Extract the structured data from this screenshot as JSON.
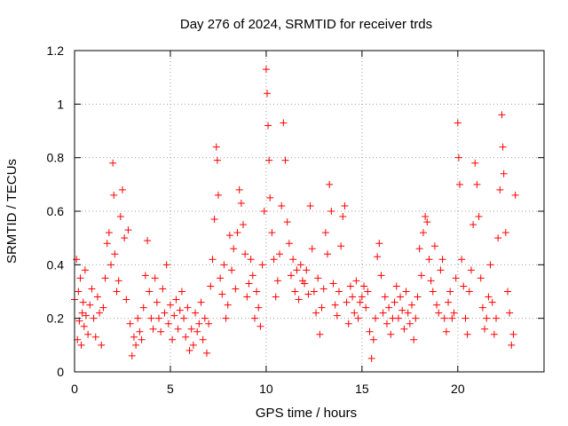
{
  "chart_data": {
    "type": "scatter",
    "title": "Day 276 of 2024, SRMTID for receiver trds",
    "xlabel": "GPS time / hours",
    "ylabel": "SRMTID / TECUs",
    "xlim": [
      0,
      24.5
    ],
    "ylim": [
      0,
      1.2
    ],
    "xticks": [
      0,
      5,
      10,
      15,
      20
    ],
    "xtick_labels": [
      "0",
      "5",
      "10",
      "15",
      "20"
    ],
    "yticks": [
      0,
      0.2,
      0.4,
      0.6,
      0.8,
      1,
      1.2
    ],
    "ytick_labels": [
      "0",
      "0.2",
      "0.4",
      "0.6",
      "0.8",
      "1",
      "1.2"
    ],
    "grid": true,
    "marker": "+",
    "color": "#ff0000",
    "series": [
      {
        "name": "SRMTID",
        "points": [
          [
            0.0,
            0.27
          ],
          [
            0.1,
            0.42
          ],
          [
            0.15,
            0.12
          ],
          [
            0.2,
            0.3
          ],
          [
            0.25,
            0.19
          ],
          [
            0.3,
            0.35
          ],
          [
            0.35,
            0.1
          ],
          [
            0.4,
            0.22
          ],
          [
            0.45,
            0.26
          ],
          [
            0.5,
            0.17
          ],
          [
            0.55,
            0.38
          ],
          [
            0.6,
            0.21
          ],
          [
            0.7,
            0.14
          ],
          [
            0.8,
            0.25
          ],
          [
            0.9,
            0.31
          ],
          [
            1.0,
            0.2
          ],
          [
            1.1,
            0.13
          ],
          [
            1.2,
            0.28
          ],
          [
            1.3,
            0.22
          ],
          [
            1.4,
            0.1
          ],
          [
            1.5,
            0.24
          ],
          [
            1.6,
            0.35
          ],
          [
            1.7,
            0.48
          ],
          [
            1.8,
            0.52
          ],
          [
            1.9,
            0.4
          ],
          [
            2.0,
            0.78
          ],
          [
            2.05,
            0.66
          ],
          [
            2.1,
            0.44
          ],
          [
            2.2,
            0.3
          ],
          [
            2.3,
            0.34
          ],
          [
            2.4,
            0.58
          ],
          [
            2.5,
            0.68
          ],
          [
            2.6,
            0.5
          ],
          [
            2.7,
            0.27
          ],
          [
            2.8,
            0.53
          ],
          [
            2.9,
            0.18
          ],
          [
            3.0,
            0.06
          ],
          [
            3.1,
            0.13
          ],
          [
            3.2,
            0.1
          ],
          [
            3.3,
            0.2
          ],
          [
            3.4,
            0.15
          ],
          [
            3.5,
            0.12
          ],
          [
            3.6,
            0.24
          ],
          [
            3.7,
            0.36
          ],
          [
            3.8,
            0.49
          ],
          [
            3.9,
            0.3
          ],
          [
            4.0,
            0.2
          ],
          [
            4.1,
            0.16
          ],
          [
            4.2,
            0.35
          ],
          [
            4.3,
            0.26
          ],
          [
            4.4,
            0.2
          ],
          [
            4.5,
            0.15
          ],
          [
            4.6,
            0.31
          ],
          [
            4.7,
            0.22
          ],
          [
            4.8,
            0.4
          ],
          [
            4.9,
            0.18
          ],
          [
            5.0,
            0.25
          ],
          [
            5.1,
            0.12
          ],
          [
            5.2,
            0.21
          ],
          [
            5.3,
            0.27
          ],
          [
            5.4,
            0.16
          ],
          [
            5.5,
            0.23
          ],
          [
            5.6,
            0.3
          ],
          [
            5.7,
            0.2
          ],
          [
            5.8,
            0.13
          ],
          [
            5.9,
            0.24
          ],
          [
            6.0,
            0.08
          ],
          [
            6.1,
            0.16
          ],
          [
            6.2,
            0.1
          ],
          [
            6.3,
            0.22
          ],
          [
            6.4,
            0.15
          ],
          [
            6.5,
            0.18
          ],
          [
            6.6,
            0.26
          ],
          [
            6.7,
            0.12
          ],
          [
            6.8,
            0.2
          ],
          [
            6.9,
            0.07
          ],
          [
            7.0,
            0.18
          ],
          [
            7.1,
            0.32
          ],
          [
            7.2,
            0.42
          ],
          [
            7.3,
            0.57
          ],
          [
            7.4,
            0.84
          ],
          [
            7.45,
            0.79
          ],
          [
            7.5,
            0.66
          ],
          [
            7.6,
            0.35
          ],
          [
            7.7,
            0.29
          ],
          [
            7.8,
            0.4
          ],
          [
            7.9,
            0.2
          ],
          [
            8.0,
            0.25
          ],
          [
            8.1,
            0.51
          ],
          [
            8.2,
            0.38
          ],
          [
            8.3,
            0.46
          ],
          [
            8.4,
            0.31
          ],
          [
            8.5,
            0.52
          ],
          [
            8.6,
            0.68
          ],
          [
            8.7,
            0.63
          ],
          [
            8.8,
            0.55
          ],
          [
            8.9,
            0.44
          ],
          [
            9.0,
            0.28
          ],
          [
            9.1,
            0.33
          ],
          [
            9.2,
            0.42
          ],
          [
            9.3,
            0.36
          ],
          [
            9.4,
            0.2
          ],
          [
            9.5,
            0.3
          ],
          [
            9.6,
            0.24
          ],
          [
            9.7,
            0.17
          ],
          [
            9.8,
            0.4
          ],
          [
            9.9,
            0.6
          ],
          [
            10.0,
            1.13
          ],
          [
            10.05,
            1.04
          ],
          [
            10.1,
            0.92
          ],
          [
            10.15,
            0.79
          ],
          [
            10.2,
            0.65
          ],
          [
            10.3,
            0.52
          ],
          [
            10.4,
            0.42
          ],
          [
            10.5,
            0.28
          ],
          [
            10.6,
            0.34
          ],
          [
            10.7,
            0.44
          ],
          [
            10.8,
            0.62
          ],
          [
            10.9,
            0.93
          ],
          [
            11.0,
            0.79
          ],
          [
            11.1,
            0.56
          ],
          [
            11.2,
            0.48
          ],
          [
            11.3,
            0.36
          ],
          [
            11.4,
            0.42
          ],
          [
            11.5,
            0.3
          ],
          [
            11.6,
            0.38
          ],
          [
            11.7,
            0.27
          ],
          [
            11.8,
            0.4
          ],
          [
            11.9,
            0.34
          ],
          [
            12.0,
            0.33
          ],
          [
            12.1,
            0.38
          ],
          [
            12.2,
            0.29
          ],
          [
            12.3,
            0.62
          ],
          [
            12.4,
            0.46
          ],
          [
            12.5,
            0.3
          ],
          [
            12.6,
            0.22
          ],
          [
            12.7,
            0.35
          ],
          [
            12.8,
            0.14
          ],
          [
            12.9,
            0.24
          ],
          [
            13.0,
            0.31
          ],
          [
            13.1,
            0.52
          ],
          [
            13.2,
            0.44
          ],
          [
            13.3,
            0.7
          ],
          [
            13.4,
            0.6
          ],
          [
            13.5,
            0.33
          ],
          [
            13.6,
            0.25
          ],
          [
            13.7,
            0.21
          ],
          [
            13.8,
            0.3
          ],
          [
            13.9,
            0.47
          ],
          [
            14.0,
            0.58
          ],
          [
            14.1,
            0.62
          ],
          [
            14.2,
            0.26
          ],
          [
            14.3,
            0.18
          ],
          [
            14.4,
            0.32
          ],
          [
            14.5,
            0.28
          ],
          [
            14.6,
            0.22
          ],
          [
            14.7,
            0.34
          ],
          [
            14.8,
            0.2
          ],
          [
            14.9,
            0.26
          ],
          [
            15.0,
            0.28
          ],
          [
            15.1,
            0.32
          ],
          [
            15.2,
            0.24
          ],
          [
            15.3,
            0.3
          ],
          [
            15.4,
            0.15
          ],
          [
            15.5,
            0.05
          ],
          [
            15.6,
            0.12
          ],
          [
            15.7,
            0.2
          ],
          [
            15.8,
            0.43
          ],
          [
            15.9,
            0.48
          ],
          [
            16.0,
            0.36
          ],
          [
            16.1,
            0.22
          ],
          [
            16.2,
            0.28
          ],
          [
            16.3,
            0.18
          ],
          [
            16.4,
            0.24
          ],
          [
            16.5,
            0.14
          ],
          [
            16.6,
            0.2
          ],
          [
            16.7,
            0.26
          ],
          [
            16.8,
            0.32
          ],
          [
            16.9,
            0.2
          ],
          [
            17.0,
            0.28
          ],
          [
            17.1,
            0.23
          ],
          [
            17.2,
            0.16
          ],
          [
            17.3,
            0.3
          ],
          [
            17.4,
            0.22
          ],
          [
            17.5,
            0.18
          ],
          [
            17.6,
            0.25
          ],
          [
            17.7,
            0.12
          ],
          [
            17.8,
            0.2
          ],
          [
            17.9,
            0.28
          ],
          [
            18.0,
            0.46
          ],
          [
            18.1,
            0.36
          ],
          [
            18.2,
            0.52
          ],
          [
            18.3,
            0.58
          ],
          [
            18.4,
            0.56
          ],
          [
            18.5,
            0.42
          ],
          [
            18.6,
            0.34
          ],
          [
            18.7,
            0.3
          ],
          [
            18.8,
            0.47
          ],
          [
            18.9,
            0.25
          ],
          [
            19.0,
            0.22
          ],
          [
            19.1,
            0.38
          ],
          [
            19.2,
            0.42
          ],
          [
            19.3,
            0.2
          ],
          [
            19.4,
            0.15
          ],
          [
            19.5,
            0.26
          ],
          [
            19.6,
            0.3
          ],
          [
            19.7,
            0.2
          ],
          [
            19.8,
            0.22
          ],
          [
            19.9,
            0.35
          ],
          [
            20.0,
            0.93
          ],
          [
            20.05,
            0.8
          ],
          [
            20.1,
            0.7
          ],
          [
            20.2,
            0.42
          ],
          [
            20.3,
            0.32
          ],
          [
            20.4,
            0.2
          ],
          [
            20.5,
            0.14
          ],
          [
            20.6,
            0.3
          ],
          [
            20.7,
            0.38
          ],
          [
            20.8,
            0.55
          ],
          [
            20.9,
            0.78
          ],
          [
            21.0,
            0.7
          ],
          [
            21.1,
            0.58
          ],
          [
            21.2,
            0.35
          ],
          [
            21.3,
            0.24
          ],
          [
            21.4,
            0.16
          ],
          [
            21.5,
            0.2
          ],
          [
            21.6,
            0.28
          ],
          [
            21.7,
            0.4
          ],
          [
            21.8,
            0.26
          ],
          [
            21.9,
            0.14
          ],
          [
            22.0,
            0.2
          ],
          [
            22.1,
            0.5
          ],
          [
            22.2,
            0.68
          ],
          [
            22.3,
            0.96
          ],
          [
            22.35,
            0.84
          ],
          [
            22.4,
            0.74
          ],
          [
            22.5,
            0.52
          ],
          [
            22.6,
            0.3
          ],
          [
            22.7,
            0.22
          ],
          [
            22.8,
            0.1
          ],
          [
            22.9,
            0.14
          ],
          [
            23.0,
            0.66
          ]
        ]
      }
    ]
  }
}
